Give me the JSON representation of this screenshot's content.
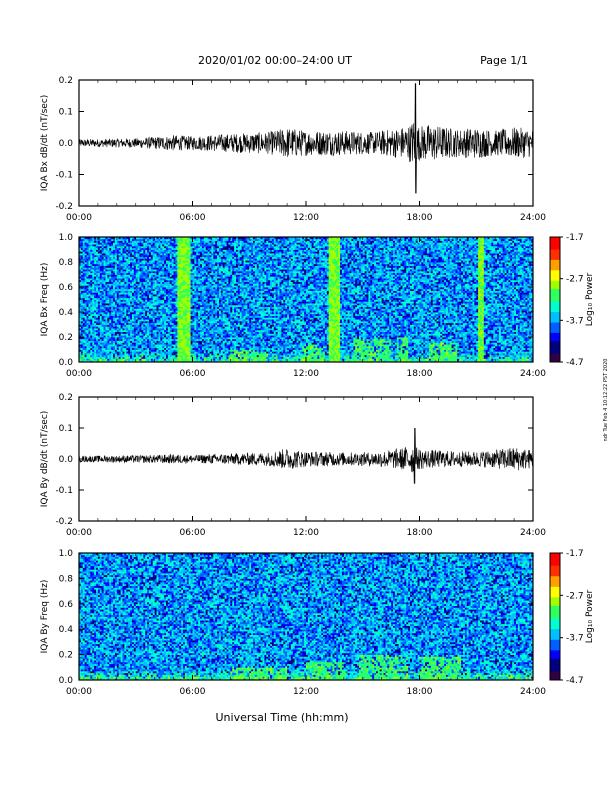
{
  "header": {
    "title": "2020/01/02  00:00–24:00 UT",
    "page": "Page 1/1"
  },
  "footer": {
    "xlabel": "Universal Time (hh:mm)",
    "side_stamp": "ndr Tue Feb 4 10:12:22 PST 2020"
  },
  "colors": {
    "trace": "#000000",
    "spectro_base": "#1e62d8",
    "spectro_band": "#22dd22",
    "bottom_band": "#2ecc40"
  },
  "chart_data": [
    {
      "type": "line",
      "ylabel": "IQA Bx dB/dt (nT/sec)",
      "xlim": [
        0,
        24
      ],
      "ylim": [
        -0.2,
        0.2
      ],
      "xticks": [
        "00:00",
        "06:00",
        "12:00",
        "18:00",
        "24:00"
      ],
      "yticks": [
        "-0.2",
        "-0.1",
        "0.0",
        "0.1",
        "0.2"
      ],
      "amplitude_profile": {
        "x": [
          0,
          3,
          5,
          6,
          8,
          10,
          11,
          12,
          14,
          15.5,
          17,
          17.5,
          17.7,
          17.9,
          18.5,
          20,
          21,
          22,
          23,
          24
        ],
        "half_range": [
          0.012,
          0.015,
          0.025,
          0.022,
          0.03,
          0.035,
          0.05,
          0.04,
          0.04,
          0.035,
          0.05,
          0.06,
          0.08,
          0.055,
          0.06,
          0.045,
          0.05,
          0.04,
          0.05,
          0.045
        ]
      },
      "spike": {
        "x": 17.8,
        "max": 0.19,
        "min": -0.16
      }
    },
    {
      "type": "heatmap",
      "ylabel": "IQA Bx Freq (Hz)",
      "xlim": [
        0,
        24
      ],
      "ylim": [
        0,
        1
      ],
      "xticks": [
        "00:00",
        "06:00",
        "12:00",
        "18:00",
        "24:00"
      ],
      "yticks": [
        "0.0",
        "0.2",
        "0.4",
        "0.6",
        "0.8",
        "1.0"
      ],
      "colorbar": {
        "label": "Log₁₀ Power",
        "ticks": [
          "-1.7",
          "-2.7",
          "-3.7",
          "-4.7"
        ],
        "range": [
          -4.7,
          -1.7
        ]
      },
      "broadband_bursts": [
        {
          "start": 5.2,
          "end": 5.9
        },
        {
          "start": 13.2,
          "end": 13.75
        },
        {
          "start": 21.1,
          "end": 21.45
        }
      ],
      "low_freq_patches": [
        {
          "start": 8.0,
          "end": 10.0,
          "fmax": 0.1
        },
        {
          "start": 11.8,
          "end": 13.0,
          "fmax": 0.14
        },
        {
          "start": 14.5,
          "end": 16.5,
          "fmax": 0.18
        },
        {
          "start": 16.8,
          "end": 17.4,
          "fmax": 0.2
        },
        {
          "start": 18.5,
          "end": 20.0,
          "fmax": 0.16
        }
      ]
    },
    {
      "type": "line",
      "ylabel": "IQA By dB/dt (nT/sec)",
      "xlim": [
        0,
        24
      ],
      "ylim": [
        -0.2,
        0.2
      ],
      "xticks": [
        "00:00",
        "06:00",
        "12:00",
        "18:00",
        "24:00"
      ],
      "yticks": [
        "-0.2",
        "-0.1",
        "0.0",
        "0.1",
        "0.2"
      ],
      "amplitude_profile": {
        "x": [
          0,
          3,
          5,
          6,
          8,
          10,
          11,
          12,
          14,
          15.5,
          17,
          17.5,
          17.7,
          17.9,
          18.5,
          20,
          21,
          22,
          23,
          24
        ],
        "half_range": [
          0.01,
          0.012,
          0.015,
          0.013,
          0.018,
          0.022,
          0.035,
          0.025,
          0.022,
          0.022,
          0.035,
          0.045,
          0.05,
          0.035,
          0.03,
          0.025,
          0.025,
          0.03,
          0.04,
          0.03
        ]
      },
      "spike": {
        "x": 17.75,
        "max": 0.1,
        "min": -0.08
      }
    },
    {
      "type": "heatmap",
      "ylabel": "IQA By Freq (Hz)",
      "xlim": [
        0,
        24
      ],
      "ylim": [
        0,
        1
      ],
      "xticks": [
        "00:00",
        "06:00",
        "12:00",
        "18:00",
        "24:00"
      ],
      "yticks": [
        "0.0",
        "0.2",
        "0.4",
        "0.6",
        "0.8",
        "1.0"
      ],
      "colorbar": {
        "label": "Log₁₀ Power",
        "ticks": [
          "-1.7",
          "-2.7",
          "-3.7",
          "-4.7"
        ],
        "range": [
          -4.7,
          -1.7
        ]
      },
      "broadband_bursts": [],
      "low_freq_patches": [
        {
          "start": 8.0,
          "end": 11.0,
          "fmax": 0.1
        },
        {
          "start": 12.0,
          "end": 14.0,
          "fmax": 0.14
        },
        {
          "start": 14.8,
          "end": 17.4,
          "fmax": 0.2
        },
        {
          "start": 18.0,
          "end": 20.2,
          "fmax": 0.18
        }
      ]
    }
  ]
}
